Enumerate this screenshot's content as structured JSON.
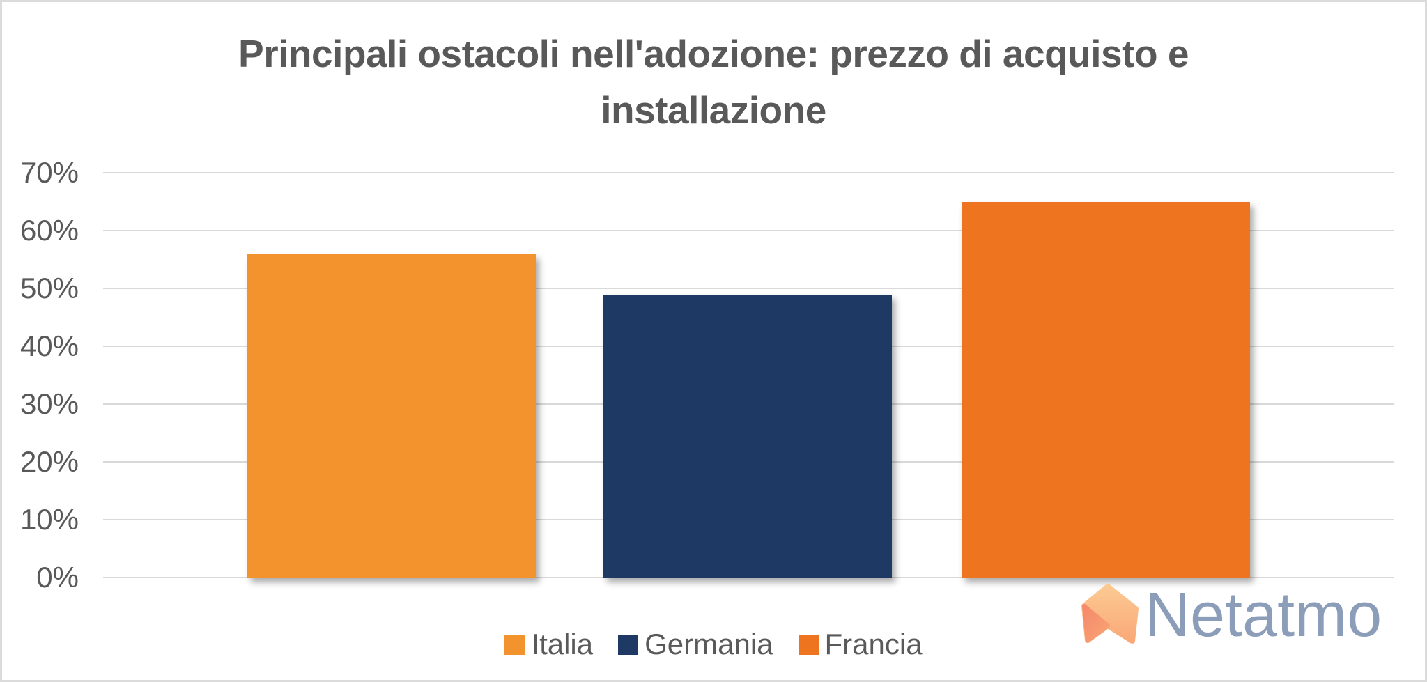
{
  "title": {
    "line1": "Principali ostacoli nell'adozione: prezzo di acquisto e",
    "line2": "installazione"
  },
  "chart_data": {
    "type": "bar",
    "title": "Principali ostacoli nell'adozione: prezzo di acquisto e installazione",
    "categories": [
      "Italia",
      "Germania",
      "Francia"
    ],
    "values": [
      56,
      49,
      65
    ],
    "unit": "%",
    "colors": [
      "#f2932e",
      "#1e3a64",
      "#ee7420"
    ],
    "xlabel": "",
    "ylabel": "",
    "ylim": [
      0,
      70
    ],
    "ytick_step": 10,
    "ytick_labels": [
      "0%",
      "10%",
      "20%",
      "30%",
      "40%",
      "50%",
      "60%",
      "70%"
    ],
    "grid": true,
    "gridline_color": "#d9d9d9",
    "legend_position": "bottom"
  },
  "legend": {
    "items": [
      {
        "label": "Italia",
        "color": "#f2932e"
      },
      {
        "label": "Germania",
        "color": "#1e3a64"
      },
      {
        "label": "Francia",
        "color": "#ee7420"
      }
    ]
  },
  "logo": {
    "text": "Netatmo",
    "text_color": "#8c9dba",
    "icon_light": "#fbc38a",
    "icon_mid": "#f9a978",
    "icon_dark": "#f58a6c"
  },
  "style": {
    "title_color": "#595959",
    "axis_text_color": "#595959",
    "border_color": "#dbdbdb"
  }
}
